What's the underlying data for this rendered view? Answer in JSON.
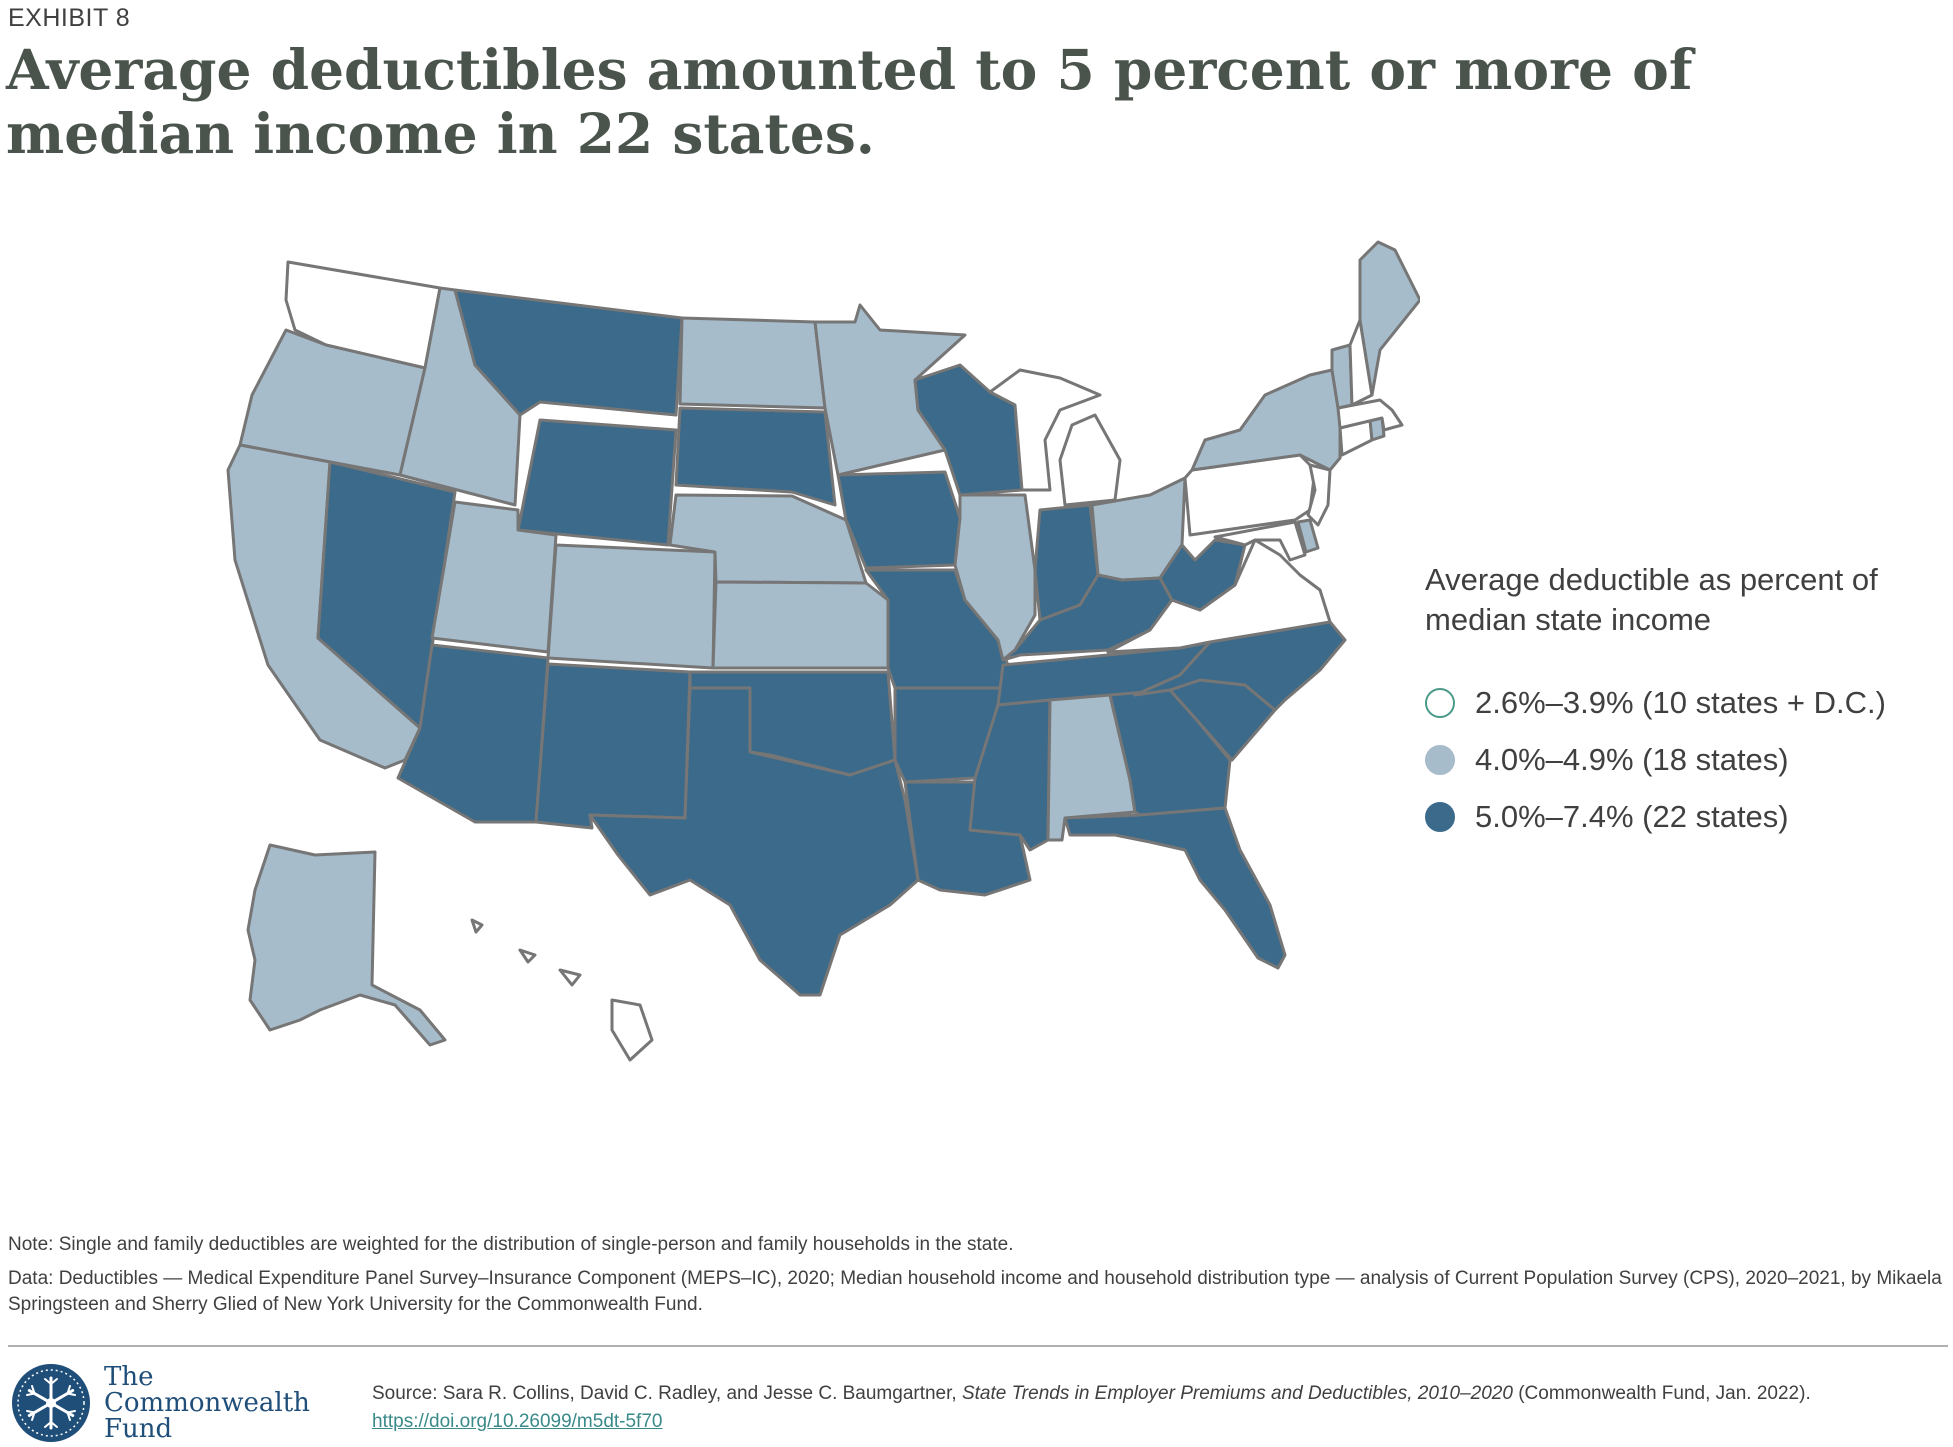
{
  "header": {
    "exhibit": "EXHIBIT 8",
    "title": "Average deductibles amounted to 5 percent or more of median income in 22 states."
  },
  "legend": {
    "title": "Average deductible as percent of median state income",
    "items": [
      {
        "label": "2.6%–3.9% (10 states + D.C.)",
        "color": "#ffffff",
        "stroke": "#4a9a8a"
      },
      {
        "label": "4.0%–4.9% (18 states)",
        "color": "#a6bccb",
        "stroke": "#a6bccb"
      },
      {
        "label": "5.0%–7.4% (22 states)",
        "color": "#3b6a8a",
        "stroke": "#3b6a8a"
      }
    ]
  },
  "map": {
    "colors": {
      "low": "#ffffff",
      "mid": "#a6bccb",
      "high": "#3b6a8a",
      "border": "#767676"
    },
    "states": {
      "WA": "low",
      "OR": "mid",
      "CA": "mid",
      "NV": "high",
      "ID": "mid",
      "MT": "high",
      "WY": "high",
      "UT": "mid",
      "CO": "mid",
      "AZ": "high",
      "NM": "high",
      "ND": "mid",
      "SD": "high",
      "NE": "mid",
      "KS": "mid",
      "OK": "high",
      "TX": "high",
      "MN": "mid",
      "IA": "high",
      "MO": "high",
      "AR": "high",
      "LA": "high",
      "WI": "high",
      "IL": "mid",
      "MI": "low",
      "IN": "high",
      "OH": "mid",
      "KY": "high",
      "TN": "high",
      "MS": "high",
      "AL": "mid",
      "GA": "high",
      "FL": "high",
      "SC": "high",
      "NC": "high",
      "VA": "low",
      "WV": "high",
      "PA": "low",
      "NY": "mid",
      "VT": "mid",
      "NH": "low",
      "ME": "mid",
      "MA": "low",
      "RI": "mid",
      "CT": "low",
      "NJ": "low",
      "DE": "mid",
      "MD": "low",
      "DC": "low",
      "AK": "mid",
      "HI": "low"
    }
  },
  "notes": {
    "note": "Note: Single and family deductibles are weighted for the distribution of single-person and family households in the state.",
    "data": "Data: Deductibles — Medical Expenditure Panel Survey–Insurance Component (MEPS–IC), 2020; Median household income and household distribution type — analysis of Current Population Survey (CPS), 2020–2021, by Mikaela Springsteen and Sherry Glied of New York University for the Commonwealth Fund."
  },
  "footer": {
    "logo_line1": "The",
    "logo_line2": "Commonwealth",
    "logo_line3": "Fund",
    "source_prefix": "Source: Sara R. Collins, David C. Radley, and Jesse C. Baumgartner, ",
    "source_title": "State Trends in Employer Premiums and Deductibles, 2010–2020",
    "source_suffix": " (Commonwealth Fund, Jan. 2022). ",
    "source_link": "https://doi.org/10.26099/m5dt-5f70"
  }
}
